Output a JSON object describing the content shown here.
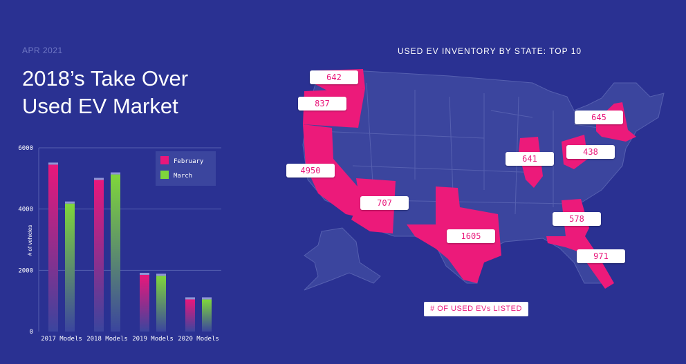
{
  "header": {
    "date": "APR 2021",
    "title_line1": "2018’s Take Over",
    "title_line2": "Used EV Market"
  },
  "colors": {
    "background": "#2a3192",
    "february": "#e9177b",
    "march": "#7fd63b",
    "state_fill": "#ec1a7a",
    "state_default": "#3b459e"
  },
  "chart_data": [
    {
      "type": "bar",
      "title": "",
      "ylabel": "# of vehicles",
      "xlabel": "",
      "ylim": [
        0,
        6000
      ],
      "yticks": [
        0,
        2000,
        4000,
        6000
      ],
      "categories": [
        "2017 Models",
        "2018 Models",
        "2019 Models",
        "2020 Models"
      ],
      "series": [
        {
          "name": "February",
          "values": [
            5450,
            4950,
            1850,
            1050
          ]
        },
        {
          "name": "March",
          "values": [
            4180,
            5130,
            1820,
            1050
          ]
        }
      ],
      "legend": "top-right",
      "grid": true
    },
    {
      "type": "choropleth",
      "title": "USED EV INVENTORY BY STATE: TOP 10",
      "legend_label": "# OF USED EVs LISTED",
      "states": [
        {
          "state": "Washington",
          "value": 642
        },
        {
          "state": "Oregon",
          "value": 837
        },
        {
          "state": "California",
          "value": 4950
        },
        {
          "state": "Arizona",
          "value": 707
        },
        {
          "state": "Texas",
          "value": 1605
        },
        {
          "state": "Illinois",
          "value": 641
        },
        {
          "state": "Ohio",
          "value": 438
        },
        {
          "state": "New York",
          "value": 645
        },
        {
          "state": "Georgia",
          "value": 578
        },
        {
          "state": "Florida",
          "value": 971
        }
      ]
    }
  ]
}
